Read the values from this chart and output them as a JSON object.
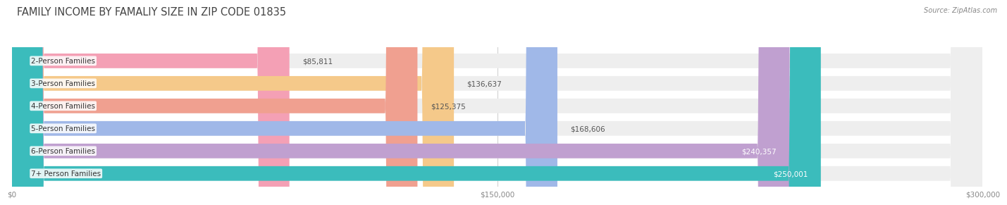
{
  "title": "FAMILY INCOME BY FAMALIY SIZE IN ZIP CODE 01835",
  "source": "Source: ZipAtlas.com",
  "categories": [
    "2-Person Families",
    "3-Person Families",
    "4-Person Families",
    "5-Person Families",
    "6-Person Families",
    "7+ Person Families"
  ],
  "values": [
    85811,
    136637,
    125375,
    168606,
    240357,
    250001
  ],
  "labels": [
    "$85,811",
    "$136,637",
    "$125,375",
    "$168,606",
    "$240,357",
    "$250,001"
  ],
  "bar_colors": [
    "#f4a0b5",
    "#f5c98a",
    "#f0a090",
    "#a0b8e8",
    "#c0a0d0",
    "#3bbcbc"
  ],
  "bar_bg_color": "#eeeeee",
  "xlim": [
    0,
    300000
  ],
  "xticks": [
    0,
    150000,
    300000
  ],
  "xticklabels": [
    "$0",
    "$150,000",
    "$300,000"
  ],
  "background_color": "#ffffff",
  "title_fontsize": 10.5,
  "label_fontsize": 7.5,
  "value_fontsize": 7.5,
  "bar_height": 0.65,
  "label_colors": [
    "#555555",
    "#555555",
    "#555555",
    "#555555",
    "#ffffff",
    "#ffffff"
  ],
  "inside_threshold": 210000
}
